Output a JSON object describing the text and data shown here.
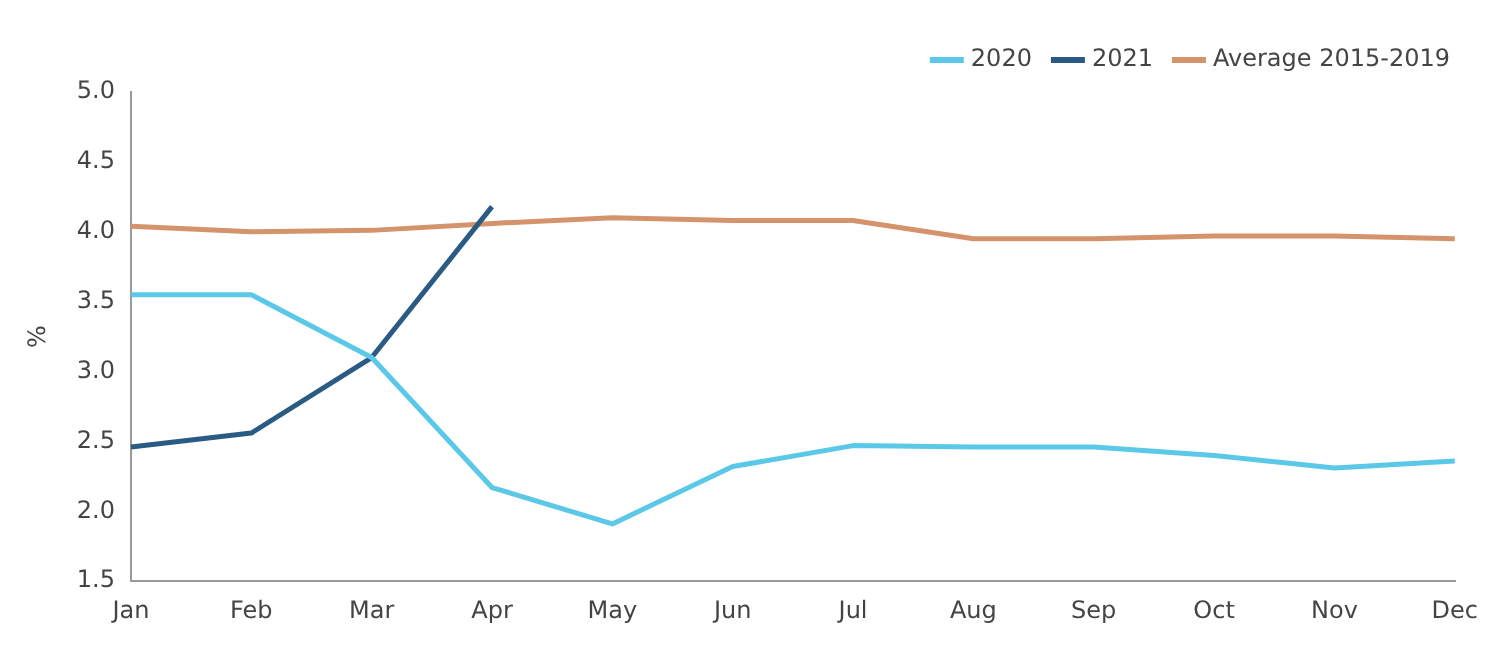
{
  "chart_data": {
    "type": "line",
    "ylabel": "%",
    "categories": [
      "Jan",
      "Feb",
      "Mar",
      "Apr",
      "May",
      "Jun",
      "Jul",
      "Aug",
      "Sep",
      "Oct",
      "Nov",
      "Dec"
    ],
    "series": [
      {
        "name": "2020",
        "color": "#5bc8e8",
        "values": [
          3.55,
          3.55,
          3.1,
          2.17,
          1.91,
          2.32,
          2.47,
          2.46,
          2.46,
          2.4,
          2.31,
          2.36
        ]
      },
      {
        "name": "2021",
        "color": "#2a5b84",
        "values": [
          2.46,
          2.56,
          3.1,
          4.18,
          null,
          null,
          null,
          null,
          null,
          null,
          null,
          null
        ]
      },
      {
        "name": "Average 2015-2019",
        "color": "#d4936a",
        "values": [
          4.04,
          4.0,
          4.01,
          4.06,
          4.1,
          4.08,
          4.08,
          3.95,
          3.95,
          3.97,
          3.97,
          3.95
        ]
      }
    ],
    "ylim": [
      1.5,
      5.0
    ],
    "yticks": [
      1.5,
      {
        "value": 2,
        "label": "2.0"
      },
      2.5,
      {
        "value": 3,
        "label": "3.0"
      },
      3.5,
      {
        "value": 4,
        "label": "4.0"
      },
      4.5,
      {
        "value": 5,
        "label": "5.0"
      }
    ],
    "grid": false,
    "legend": "top right",
    "marker": "none",
    "line_style": "solid"
  }
}
